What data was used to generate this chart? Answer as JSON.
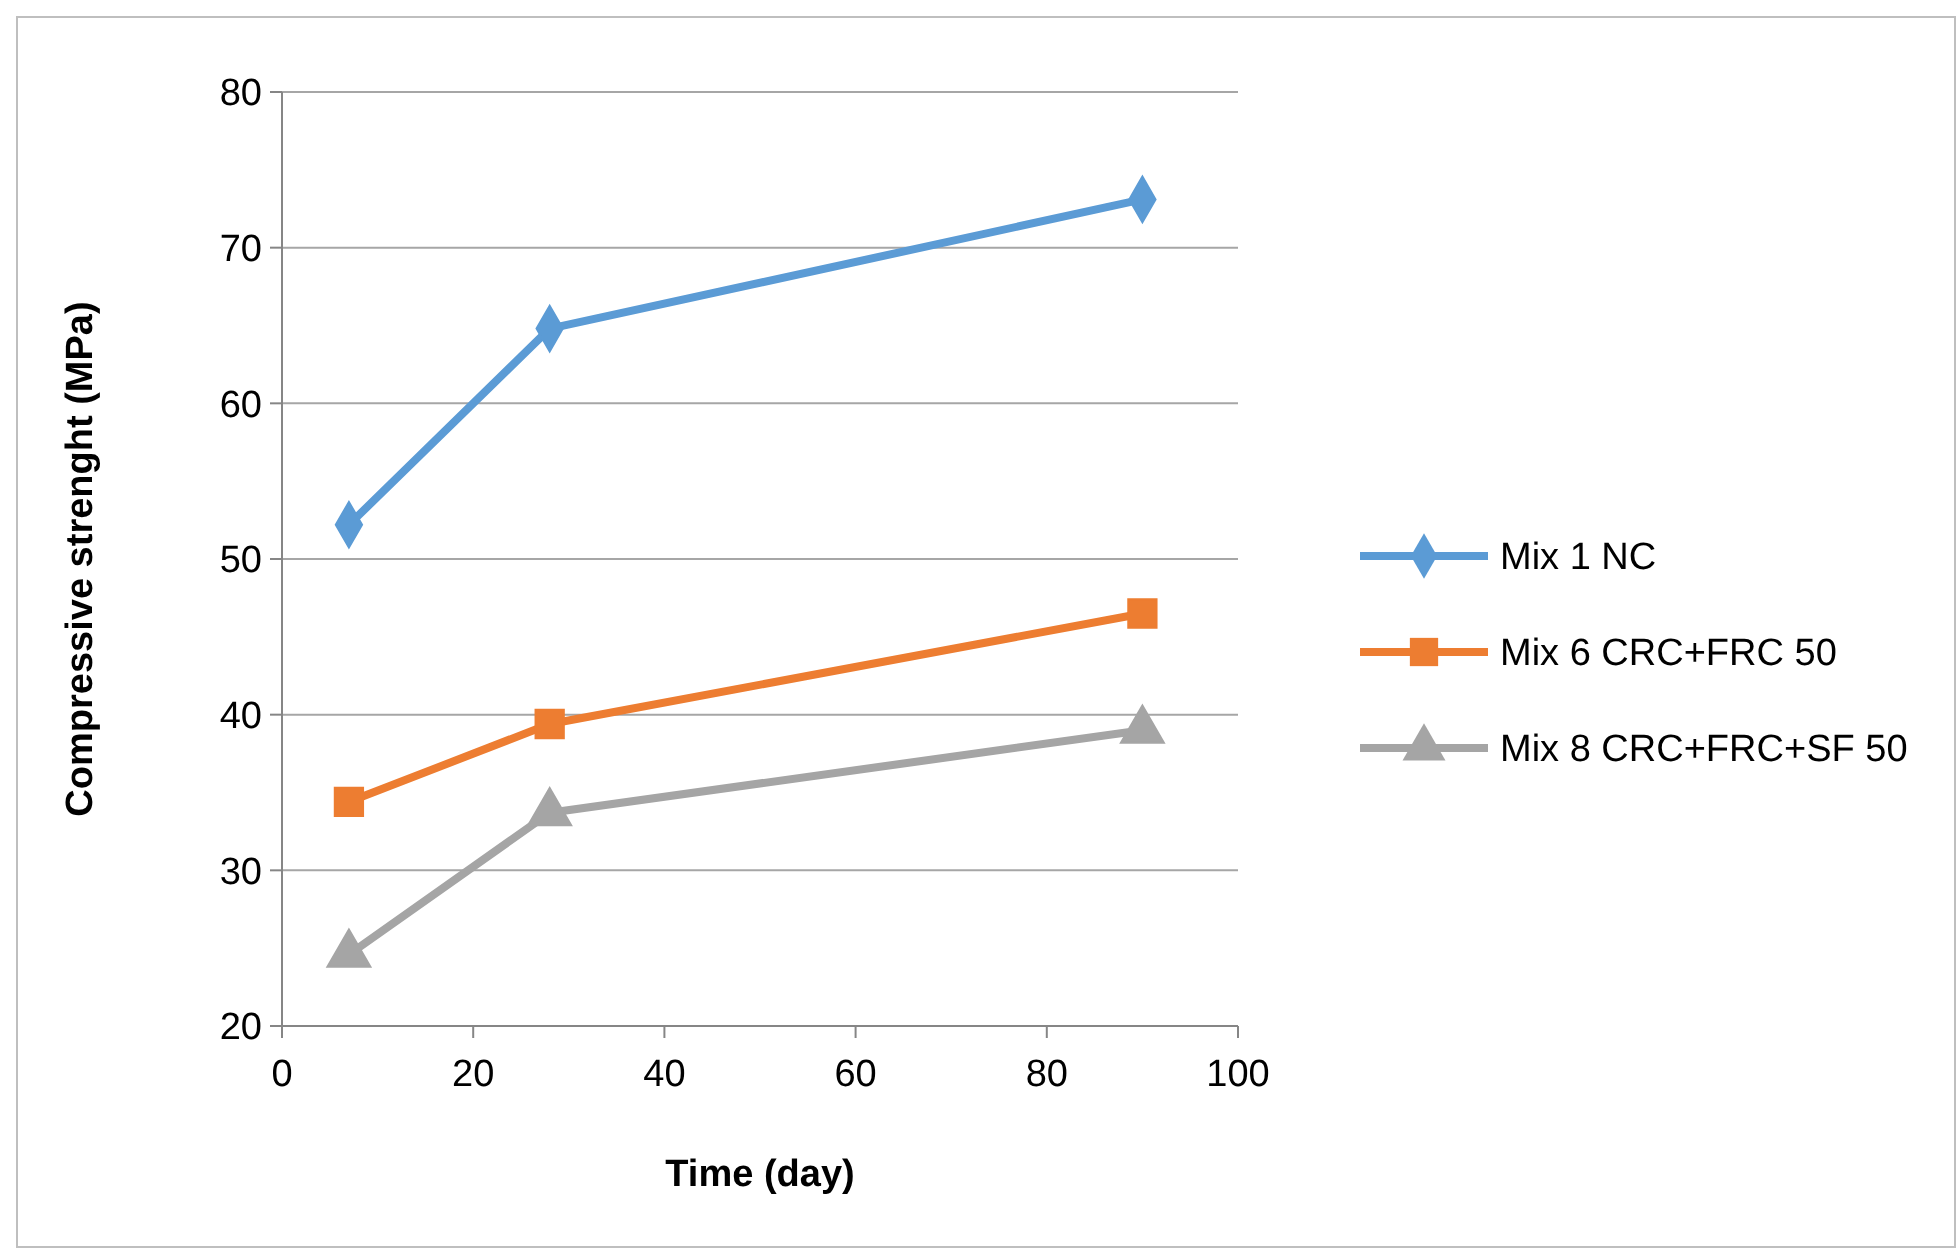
{
  "chart_data": {
    "type": "line",
    "xlabel": "Time (day)",
    "ylabel": "Compressive strenght (MPa)",
    "xlim": [
      0,
      100
    ],
    "xticks": [
      0,
      20,
      40,
      60,
      80,
      100
    ],
    "ylim": [
      20,
      80
    ],
    "yticks": [
      20,
      30,
      40,
      50,
      60,
      70,
      80
    ],
    "grid": "y",
    "legend": "right",
    "line_style": "solid",
    "x": [
      7,
      28,
      90
    ],
    "series": [
      {
        "name": "Mix 1 NC",
        "color": "#5b9bd5",
        "marker": "diamond",
        "values": [
          52.2,
          64.8,
          73.1
        ]
      },
      {
        "name": "Mix 6 CRC+FRC 50",
        "color": "#ed7d31",
        "marker": "square",
        "values": [
          34.4,
          39.4,
          46.5
        ]
      },
      {
        "name": "Mix 8 CRC+FRC+SF 50",
        "color": "#a5a5a5",
        "marker": "triangle",
        "values": [
          24.6,
          33.7,
          39.0
        ]
      }
    ]
  }
}
